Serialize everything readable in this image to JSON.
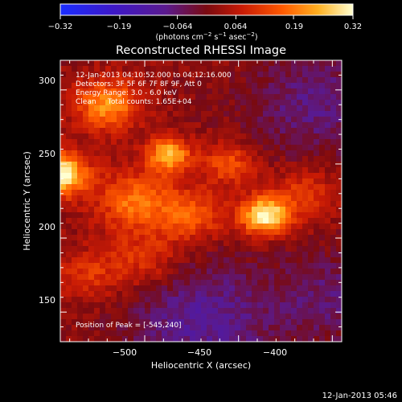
{
  "colorbar": {
    "tick_labels": [
      "−0.32",
      "−0.19",
      "−0.064",
      "0.064",
      "0.19",
      "0.32"
    ],
    "tick_values": [
      -0.32,
      -0.19,
      -0.064,
      0.064,
      0.19,
      0.32
    ],
    "unit_label": "(photons cm",
    "unit_exp1": "−2",
    "unit_mid": " s",
    "unit_exp2": "−1",
    "unit_tail": " asec",
    "unit_exp3": "−2",
    "unit_close": ")"
  },
  "chart_data": {
    "type": "heatmap",
    "title": "Reconstructed RHESSI Image",
    "xlabel": "Heliocentric X (arcsec)",
    "ylabel": "Heliocentric Y (arcsec)",
    "xlim": [
      -545,
      -395
    ],
    "ylim": [
      130,
      320
    ],
    "x_ticks": [
      -500,
      -450,
      -400
    ],
    "x_tick_labels": [
      "−500",
      "−450",
      "−400"
    ],
    "y_ticks": [
      150,
      200,
      250,
      300
    ],
    "y_tick_labels": [
      "150",
      "200",
      "250",
      "300"
    ],
    "value_range": [
      -0.32,
      0.32
    ],
    "colormap": "rhessi-thermal (blue → purple → red → orange → white)",
    "annotations": [
      "12-Jan-2013 04:10:52.000 to 04:12:16.000",
      "Detectors: 3F 5F 6F 7F 8F 9F, Att 0",
      "Energy Range: 3.0 - 6.0 keV",
      "Clean     Total counts: 1.65E+04"
    ],
    "peak_label": "Position of Peak = [-545,240]",
    "peak_position": [
      -545,
      240
    ],
    "sources": [
      {
        "x": -436,
        "y": 215,
        "amplitude": 0.3,
        "sigma": 9
      },
      {
        "x": -545,
        "y": 243,
        "amplitude": 0.31,
        "sigma": 10
      },
      {
        "x": -487,
        "y": 256,
        "amplitude": 0.24,
        "sigma": 8
      },
      {
        "x": -520,
        "y": 290,
        "amplitude": 0.2,
        "sigma": 12
      },
      {
        "x": -505,
        "y": 225,
        "amplitude": 0.17,
        "sigma": 14
      },
      {
        "x": -475,
        "y": 215,
        "amplitude": 0.14,
        "sigma": 12
      },
      {
        "x": -455,
        "y": 250,
        "amplitude": 0.13,
        "sigma": 10
      },
      {
        "x": -415,
        "y": 230,
        "amplitude": 0.1,
        "sigma": 12
      },
      {
        "x": -500,
        "y": 185,
        "amplitude": 0.1,
        "sigma": 14
      },
      {
        "x": -530,
        "y": 175,
        "amplitude": 0.09,
        "sigma": 12
      }
    ],
    "background": [
      {
        "x": -470,
        "y": 145,
        "amplitude": -0.12,
        "sigma": 28
      },
      {
        "x": -410,
        "y": 290,
        "amplitude": -0.1,
        "sigma": 25
      },
      {
        "x": -400,
        "y": 160,
        "amplitude": -0.08,
        "sigma": 22
      }
    ]
  },
  "footer": {
    "timestamp": "12-Jan-2013 05:46"
  }
}
